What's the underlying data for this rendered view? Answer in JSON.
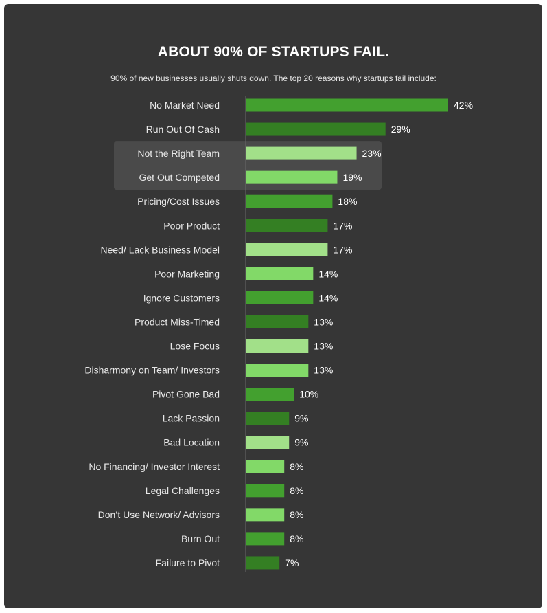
{
  "header": {
    "title": "ABOUT 90% OF STARTUPS FAIL.",
    "subtitle": "90% of new businesses usually shuts down. The top 20 reasons why startups fail include:"
  },
  "colors": {
    "background": "#363636",
    "highlight_band": "#4a4a4a",
    "bar_palette": [
      "#43a02f",
      "#347f23",
      "#a2e089",
      "#82d968"
    ]
  },
  "chart_data": {
    "type": "bar",
    "orientation": "horizontal",
    "title": "ABOUT 90% OF STARTUPS FAIL.",
    "subtitle": "90% of new businesses usually shuts down. The top 20 reasons why startups fail include:",
    "categories": [
      "No Market Need",
      "Run Out Of Cash",
      "Not the Right Team",
      "Get Out Competed",
      "Pricing/Cost Issues",
      "Poor Product",
      "Need/ Lack Business Model",
      "Poor Marketing",
      "Ignore Customers",
      "Product Miss-Timed",
      "Lose Focus",
      "Disharmony on Team/ Investors",
      "Pivot Gone Bad",
      "Lack Passion",
      "Bad Location",
      "No Financing/ Investor Interest",
      "Legal Challenges",
      "Don’t Use Network/ Advisors",
      "Burn Out",
      "Failure to Pivot"
    ],
    "values": [
      42,
      29,
      23,
      19,
      18,
      17,
      17,
      14,
      14,
      13,
      13,
      13,
      10,
      9,
      9,
      8,
      8,
      8,
      8,
      7
    ],
    "value_labels": [
      "42%",
      "29%",
      "23%",
      "19%",
      "18%",
      "17%",
      "17%",
      "14%",
      "14%",
      "13%",
      "13%",
      "13%",
      "10%",
      "9%",
      "9%",
      "8%",
      "8%",
      "8%",
      "8%",
      "7%"
    ],
    "bar_color_index": [
      0,
      1,
      2,
      3,
      0,
      1,
      2,
      3,
      0,
      1,
      2,
      3,
      0,
      1,
      2,
      3,
      0,
      3,
      0,
      1
    ],
    "highlighted_categories": [
      "Not the Right Team",
      "Get Out Competed"
    ],
    "unit": "%",
    "xlim": [
      0,
      42
    ]
  }
}
